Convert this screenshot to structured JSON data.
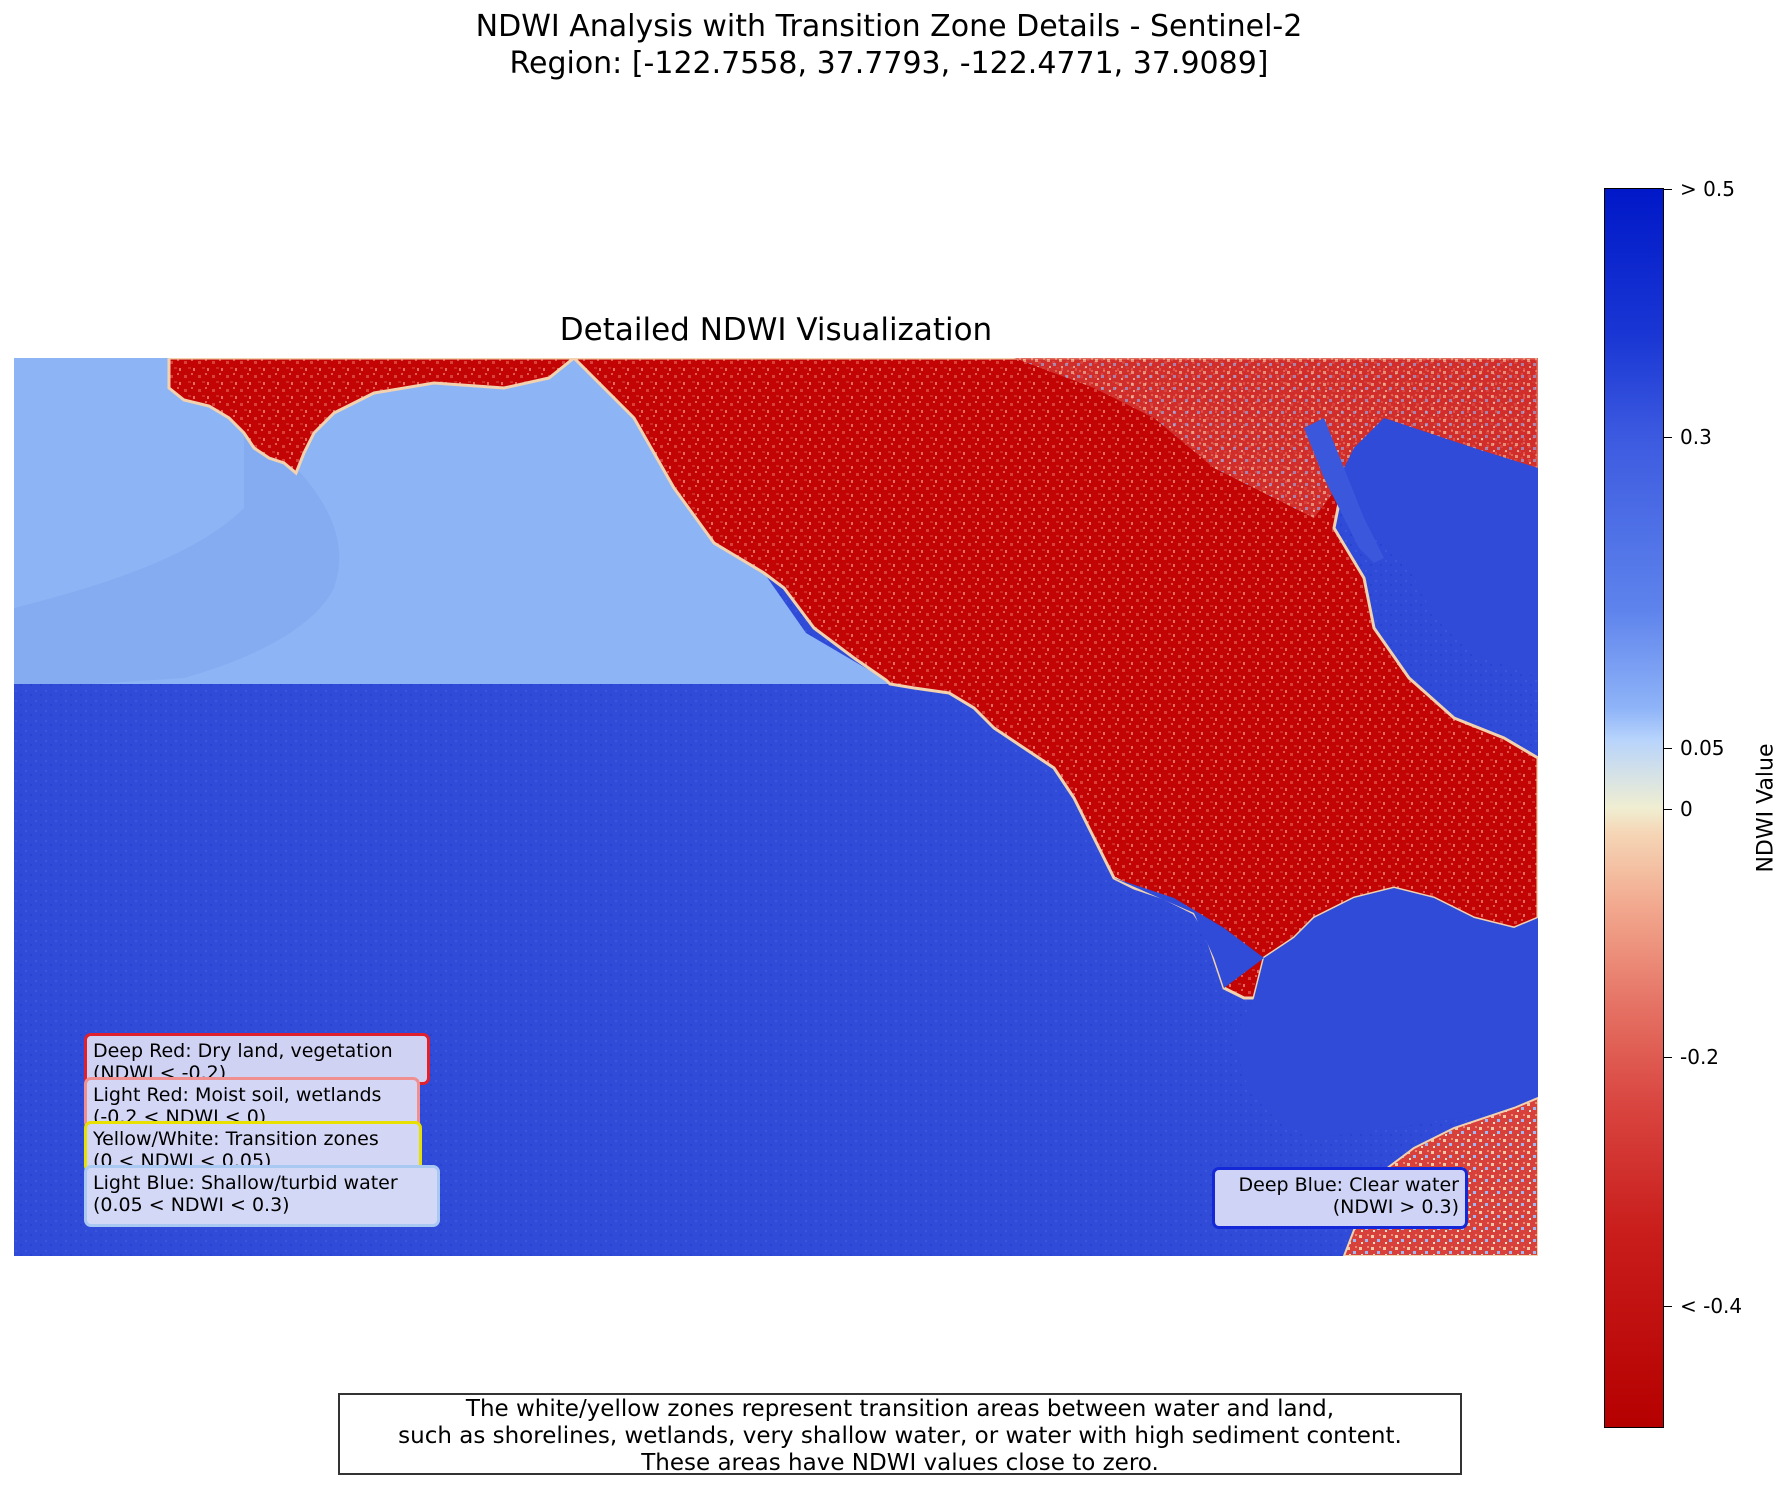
{
  "suptitle": {
    "line1": "NDWI Analysis with Transition Zone Details - Sentinel-2",
    "line2": "Region: [-122.7558, 37.7793, -122.4771, 37.9089]"
  },
  "map": {
    "title": "Detailed NDWI Visualization",
    "legend": [
      {
        "id": "deep-red",
        "line1": "Deep Red: Dry land, vegetation",
        "line2": "(NDWI < -0.2)",
        "border": "#e0202c",
        "bg": "#cfd2f3"
      },
      {
        "id": "light-red",
        "line1": "Light Red: Moist soil, wetlands",
        "line2": "(-0.2 < NDWI < 0)",
        "border": "#f08f8f",
        "bg": "#d3d6f4"
      },
      {
        "id": "yellow",
        "line1": "Yellow/White: Transition zones",
        "line2": "(0 < NDWI < 0.05)",
        "border": "#e8e000",
        "bg": "#d3d6f4"
      },
      {
        "id": "light-blue",
        "line1": "Light Blue: Shallow/turbid water",
        "line2": "(0.05 < NDWI < 0.3)",
        "border": "#a9c8f2",
        "bg": "#d3d8f6"
      },
      {
        "id": "deep-blue",
        "line1": "Deep Blue: Clear water",
        "line2": "(NDWI > 0.3)",
        "border": "#1428d8",
        "bg": "#cfd3f5"
      }
    ],
    "colors": {
      "clear_water": "#2f4bd8",
      "turbid_water": "#8db4f4",
      "dry_land": "#c00000",
      "land_texture": "#d83a36",
      "transition": "#f6e6c0"
    }
  },
  "colorbar": {
    "label": "NDWI Value",
    "ticks": [
      "> 0.5",
      "0.3",
      "0.05",
      "0",
      "-0.2",
      "< -0.4"
    ]
  },
  "note": {
    "line1": "The white/yellow zones represent transition areas between water and land,",
    "line2": "such as shorelines, wetlands, very shallow water, or water with high sediment content.",
    "line3": "These areas have NDWI values close to zero."
  }
}
